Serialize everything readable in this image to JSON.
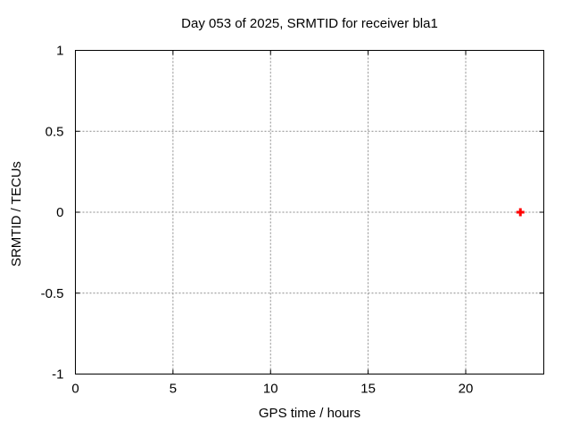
{
  "chart_data": {
    "type": "scatter",
    "title": "Day 053 of 2025, SRMTID for receiver bla1",
    "xlabel": "GPS time / hours",
    "ylabel": "SRMTID / TECUs",
    "xlim": [
      0,
      24
    ],
    "ylim": [
      -1,
      1
    ],
    "xticks": [
      0,
      5,
      10,
      15,
      20
    ],
    "xtick_labels": [
      "0",
      "5",
      "10",
      "15",
      "20"
    ],
    "yticks": [
      -1,
      -0.5,
      0,
      0.5,
      1
    ],
    "ytick_labels": [
      "-1",
      "-0.5",
      "0",
      "0.5",
      "1"
    ],
    "grid": true,
    "legend": "none",
    "colors": {
      "background": "#ffffff",
      "axis": "#000000",
      "grid": "#8c8c8c",
      "marker": "#ff0000"
    },
    "series": [
      {
        "marker": "plus",
        "color": "#ff0000",
        "points": [
          [
            22.8,
            0.0
          ]
        ]
      }
    ]
  }
}
